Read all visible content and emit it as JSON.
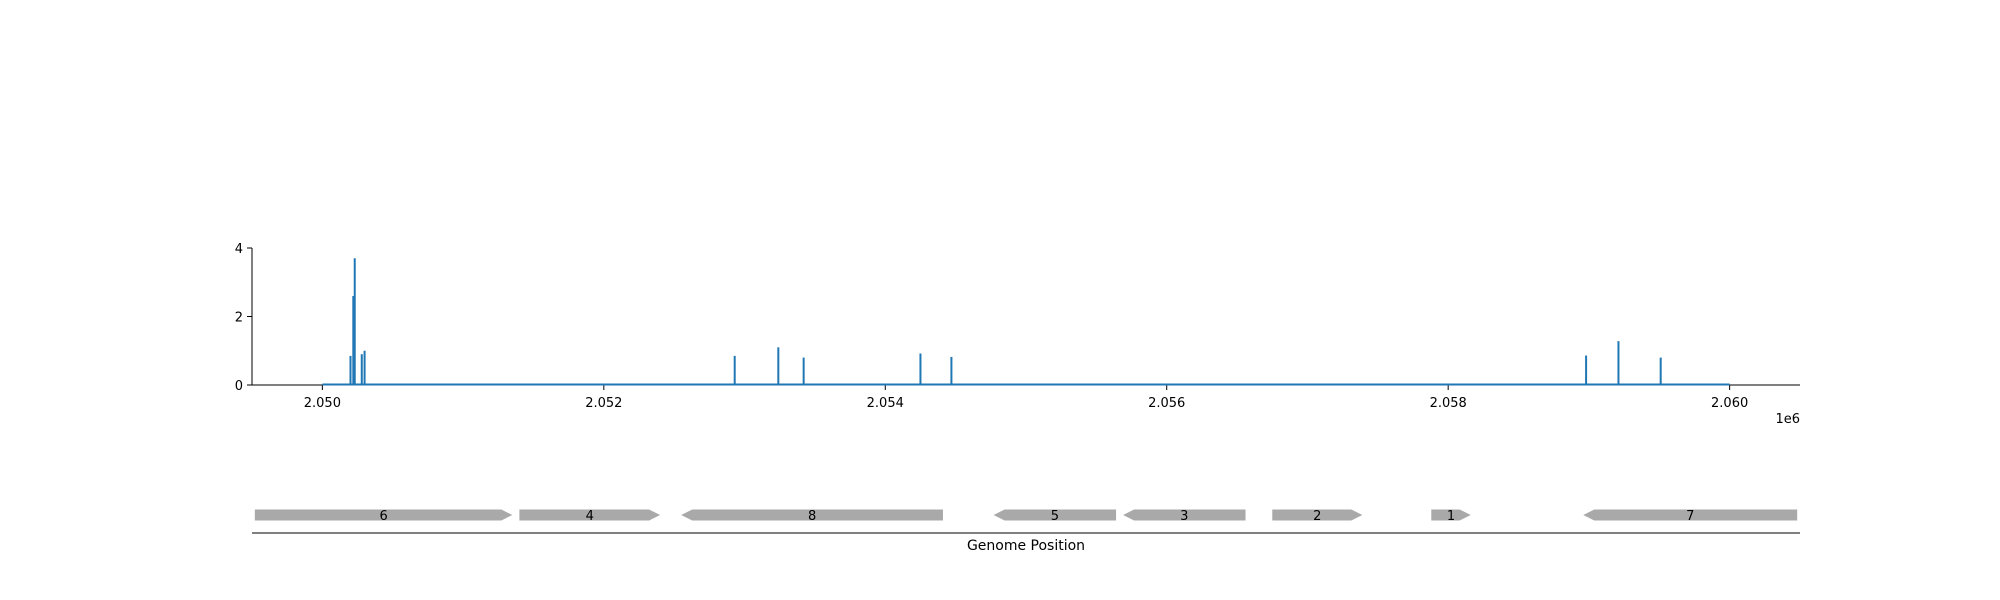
{
  "chart_data": [
    {
      "type": "bar",
      "x_offset_label": "1e6",
      "xlim": [
        2049500,
        2060500
      ],
      "ylim": [
        0,
        4
      ],
      "x_ticks": [
        2050000,
        2052000,
        2054000,
        2056000,
        2058000,
        2060000
      ],
      "x_tick_labels": [
        "2.050",
        "2.052",
        "2.054",
        "2.056",
        "2.058",
        "2.060"
      ],
      "y_ticks": [
        0,
        2,
        4
      ],
      "y_tick_labels": [
        "0",
        "2",
        "4"
      ],
      "baseline": [
        2050000,
        2060000
      ],
      "color": "#1f77b4",
      "x": [
        2050200,
        2050220,
        2050230,
        2050280,
        2050300,
        2052930,
        2053240,
        2053420,
        2054250,
        2054470,
        2058980,
        2059210,
        2059510
      ],
      "values": [
        0.85,
        2.6,
        3.7,
        0.9,
        1.0,
        0.85,
        1.1,
        0.8,
        0.92,
        0.82,
        0.86,
        1.28,
        0.8
      ],
      "grid": false
    },
    {
      "type": "gene-track",
      "xlabel": "Genome Position",
      "color": "#a9a9a9",
      "genes": [
        {
          "label": "6",
          "start": 2049520,
          "end": 2051350,
          "strand": "+"
        },
        {
          "label": "4",
          "start": 2051400,
          "end": 2052400,
          "strand": "+"
        },
        {
          "label": "8",
          "start": 2052550,
          "end": 2054410,
          "strand": "-"
        },
        {
          "label": "5",
          "start": 2054770,
          "end": 2055640,
          "strand": "-"
        },
        {
          "label": "3",
          "start": 2055690,
          "end": 2056560,
          "strand": "-"
        },
        {
          "label": "2",
          "start": 2056750,
          "end": 2057390,
          "strand": "+"
        },
        {
          "label": "1",
          "start": 2057880,
          "end": 2058160,
          "strand": "+"
        },
        {
          "label": "7",
          "start": 2058960,
          "end": 2060480,
          "strand": "-"
        }
      ]
    }
  ]
}
